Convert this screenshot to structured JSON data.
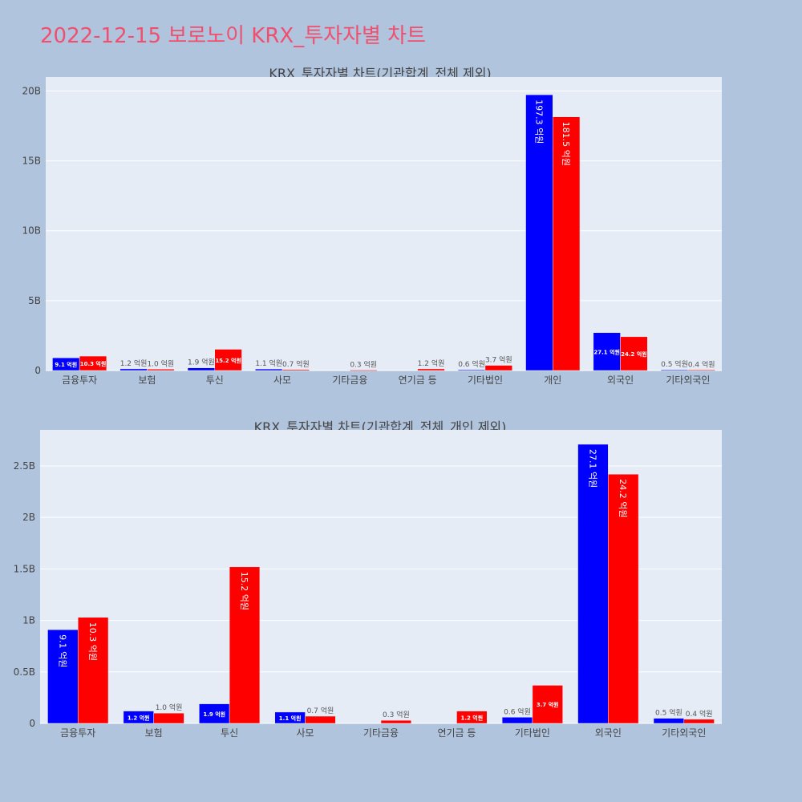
{
  "title": "2022-12-15 보로노이 KRX_투자자별 차트",
  "colors": {
    "buy": "#0000ff",
    "sell": "#ff0000",
    "plot_bg": "#e5ecf6",
    "page_bg": "#b0c4de",
    "title": "#f0506e"
  },
  "chart_data": [
    {
      "type": "bar",
      "title": "KRX_투자자별 차트(기관합계_전체 제외)",
      "categories": [
        "금융투자",
        "보험",
        "투신",
        "사모",
        "기타금융",
        "연기금 등",
        "기타법인",
        "개인",
        "외국인",
        "기타외국인"
      ],
      "series": [
        {
          "values": [
            0.91,
            0.12,
            0.19,
            0.11,
            0,
            0,
            0.06,
            19.73,
            2.71,
            0.05
          ],
          "labels": [
            "9.1 억원",
            "1.2 억원",
            "1.9 억원",
            "1.1 억원",
            "",
            "",
            "0.6 억원",
            "197.3 억원",
            "27.1 억원",
            "0.5 억원"
          ]
        },
        {
          "values": [
            1.03,
            0.1,
            1.52,
            0.07,
            0.03,
            0.12,
            0.37,
            18.15,
            2.42,
            0.04
          ],
          "labels": [
            "10.3 억원",
            "1.0 억원",
            "15.2 억원",
            "0.7 억원",
            "0.3 억원",
            "1.2 억원",
            "3.7 억원",
            "181.5 억원",
            "24.2 억원",
            "0.4 억원"
          ]
        }
      ],
      "ylim": [
        0,
        21
      ],
      "yticks": [
        0,
        5,
        10,
        15,
        20
      ],
      "ytick_labels": [
        "0",
        "5B",
        "10B",
        "15B",
        "20B"
      ],
      "grid": true
    },
    {
      "type": "bar",
      "title": "KRX_투자자별 차트(기관합계_전체_개인 제외)",
      "categories": [
        "금융투자",
        "보험",
        "투신",
        "사모",
        "기타금융",
        "연기금 등",
        "기타법인",
        "외국인",
        "기타외국인"
      ],
      "series": [
        {
          "values": [
            0.91,
            0.12,
            0.19,
            0.11,
            0,
            0,
            0.06,
            2.71,
            0.05
          ],
          "labels": [
            "9.1 억원",
            "1.2 억원",
            "1.9 억원",
            "1.1 억원",
            "",
            "",
            "0.6 억원",
            "27.1 억원",
            "0.5 억원"
          ]
        },
        {
          "values": [
            1.03,
            0.1,
            1.52,
            0.07,
            0.03,
            0.12,
            0.37,
            2.42,
            0.04
          ],
          "labels": [
            "10.3 억원",
            "1.0 억원",
            "15.2 억원",
            "0.7 억원",
            "0.3 억원",
            "1.2 억원",
            "3.7 억원",
            "24.2 억원",
            "0.4 억원"
          ]
        }
      ],
      "ylim": [
        0,
        2.85
      ],
      "yticks": [
        0,
        0.5,
        1,
        1.5,
        2,
        2.5
      ],
      "ytick_labels": [
        "0",
        "0.5B",
        "1B",
        "1.5B",
        "2B",
        "2.5B"
      ],
      "grid": true
    }
  ]
}
